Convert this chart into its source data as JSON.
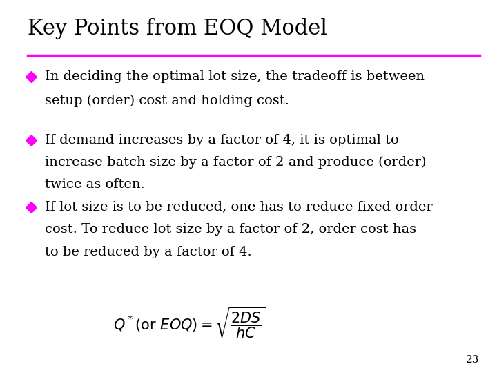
{
  "title": "Key Points from EOQ Model",
  "title_color": "#000000",
  "title_underline_color": "#FF00FF",
  "background_color": "#FFFFFF",
  "bullet_color": "#FF00FF",
  "text_color": "#000000",
  "bullet1_line1": "In deciding the optimal lot size, the tradeoff is between",
  "bullet1_line2": "setup (order) cost and holding cost.",
  "bullet2_line1": "If demand increases by a factor of 4, it is optimal to",
  "bullet2_line2": "increase batch size by a factor of 2 and produce (order)",
  "bullet2_line3": "twice as often.",
  "bullet3_line1": "If lot size is to be reduced, one has to reduce fixed order",
  "bullet3_line2": "cost. To reduce lot size by a factor of 2, order cost has",
  "bullet3_line3": "to be reduced by a factor of 4.",
  "page_number": "23",
  "font_family": "serif",
  "title_fontsize": 22,
  "body_fontsize": 14,
  "page_fontsize": 11
}
